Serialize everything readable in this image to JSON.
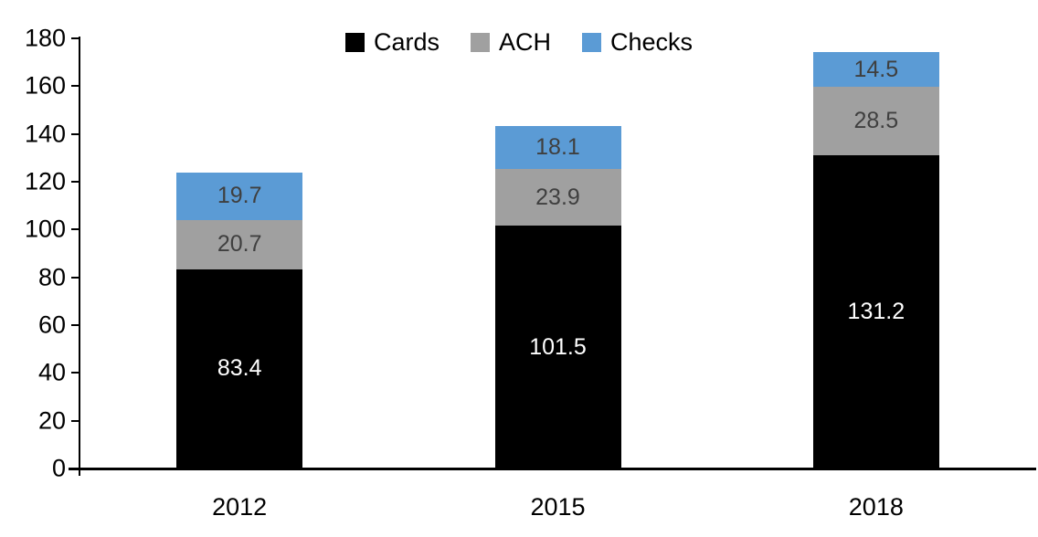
{
  "chart_data": {
    "type": "bar",
    "stacked": true,
    "title": "",
    "categories": [
      "2012",
      "2015",
      "2018"
    ],
    "series": [
      {
        "name": "Cards",
        "color": "#000000",
        "label_color": "#ffffff",
        "values": [
          83.4,
          101.5,
          131.2
        ]
      },
      {
        "name": "ACH",
        "color": "#a0a0a0",
        "label_color": "#3f3f3f",
        "values": [
          20.7,
          23.9,
          28.5
        ]
      },
      {
        "name": "Checks",
        "color": "#5b9bd5",
        "label_color": "#3f3f3f",
        "values": [
          19.7,
          18.1,
          14.5
        ]
      }
    ],
    "ylim": [
      0,
      180
    ],
    "yticks": [
      0,
      20,
      40,
      60,
      80,
      100,
      120,
      140,
      160,
      180
    ],
    "xlabel": "",
    "ylabel": "",
    "legend_position": "top-center",
    "grid": false,
    "axis_color": "#000000",
    "data_labels_shown": true
  }
}
